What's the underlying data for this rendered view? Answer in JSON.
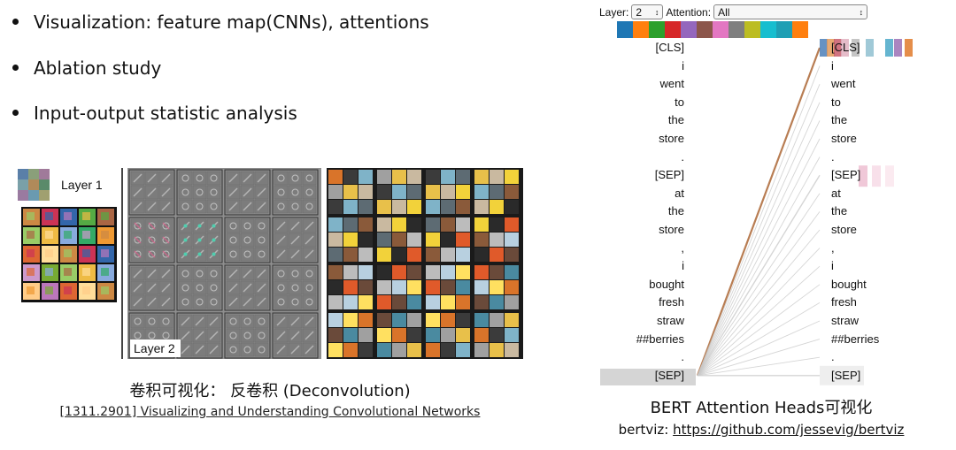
{
  "bullets": [
    "Visualization: feature map(CNNs), attentions",
    "Ablation study",
    "Input-output statistic analysis"
  ],
  "deconv": {
    "layer1_label": "Layer 1",
    "layer2_label": "Layer 2",
    "caption": "卷积可视化：  反卷积 (Deconvolution)",
    "link_text": "[1311.2901] Visualizing and Understanding Convolutional Networks"
  },
  "bertviz": {
    "layer_label": "Layer:",
    "layer_value": "2",
    "attention_label": "Attention:",
    "attention_value": "All",
    "head_colors": [
      "#1f77b4",
      "#ff7f0e",
      "#2ca02c",
      "#d62728",
      "#9467bd",
      "#8c564b",
      "#e377c2",
      "#7f7f7f",
      "#bcbd22",
      "#17becf",
      "#1f9fb4",
      "#ff7f0e"
    ],
    "tokens": [
      "[CLS]",
      "i",
      "went",
      "to",
      "the",
      "store",
      ".",
      "[SEP]",
      "at",
      "the",
      "store",
      ",",
      "i",
      "bought",
      "fresh",
      "straw",
      "##berries",
      ".",
      "[SEP]"
    ],
    "caption": "BERT Attention Heads可视化",
    "link_prefix": "bertviz: ",
    "link_url": "https://github.com/jessevig/bertviz"
  }
}
